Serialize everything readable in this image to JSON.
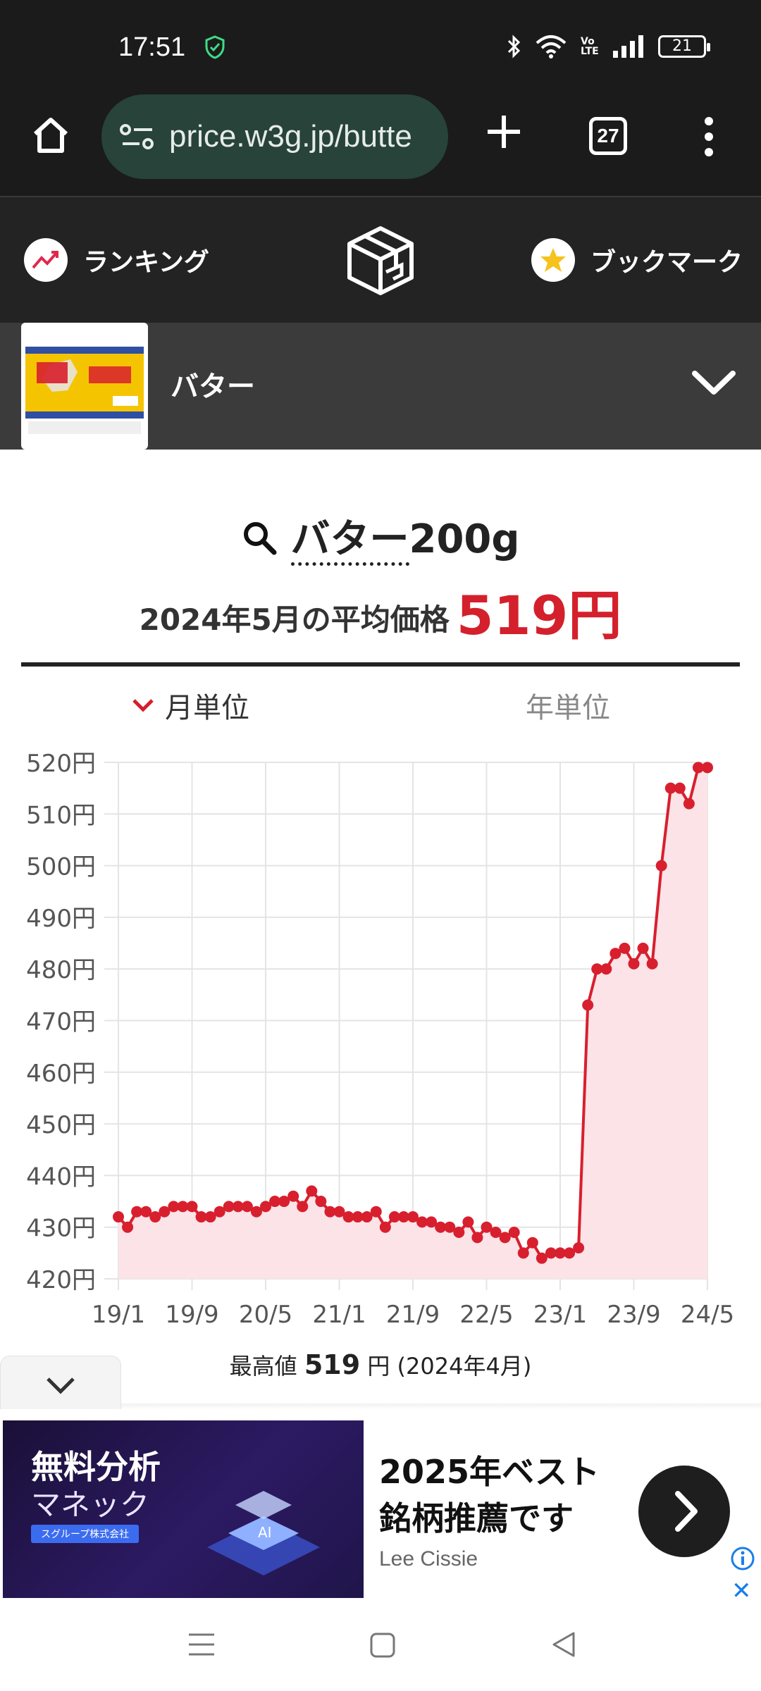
{
  "status_bar": {
    "time": "17:51",
    "battery": "21",
    "network_label": "Vo LTE"
  },
  "browser": {
    "url": "price.w3g.jp/butte",
    "tab_count": "27"
  },
  "site_nav": {
    "ranking_label": "ランキング",
    "bookmark_label": "ブックマーク"
  },
  "product": {
    "name": "バター"
  },
  "main": {
    "search_term": "バター",
    "search_suffix": "200g",
    "avg_label": "2024年5月の平均価格",
    "avg_price": "519円",
    "tab_month": "月単位",
    "tab_year": "年単位",
    "max_label": "最高値",
    "max_value": "519",
    "max_unit": "円",
    "max_date": "(2024年4月)"
  },
  "chart_data": {
    "type": "area",
    "title": "",
    "xlabel": "",
    "ylabel": "",
    "ylim": [
      420,
      520
    ],
    "y_ticks": [
      "420円",
      "430円",
      "440円",
      "450円",
      "460円",
      "470円",
      "480円",
      "490円",
      "500円",
      "510円",
      "520円"
    ],
    "x_tick_labels": [
      "19/1",
      "19/9",
      "20/5",
      "21/1",
      "21/9",
      "22/5",
      "23/1",
      "23/9",
      "24/5"
    ],
    "x_tick_index": [
      0,
      8,
      16,
      24,
      32,
      40,
      48,
      56,
      64
    ],
    "grid": true,
    "colors": {
      "line": "#d81f2e",
      "fill": "#fbe3e7"
    },
    "series": [
      {
        "values": [
          432,
          430,
          433,
          433,
          432,
          433,
          434,
          434,
          434,
          432,
          432,
          433,
          434,
          434,
          434,
          433,
          434,
          435,
          435,
          436,
          434,
          437,
          435,
          433,
          433,
          432,
          432,
          432,
          433,
          430,
          432,
          432,
          432,
          431,
          431,
          430,
          430,
          429,
          431,
          428,
          430,
          429,
          428,
          429,
          425,
          427,
          424,
          425,
          425,
          425,
          426,
          473,
          480,
          480,
          483,
          484,
          481,
          484,
          481,
          500,
          515,
          515,
          512,
          519,
          519
        ]
      }
    ]
  },
  "ad": {
    "image_line1": "無料分析",
    "image_line2": "マネック",
    "image_badge": "スグループ株式会社",
    "headline_line1": "2025年ベスト",
    "headline_line2": "銘柄推薦です",
    "advertiser": "Lee Cissie",
    "close_label": "✕"
  }
}
